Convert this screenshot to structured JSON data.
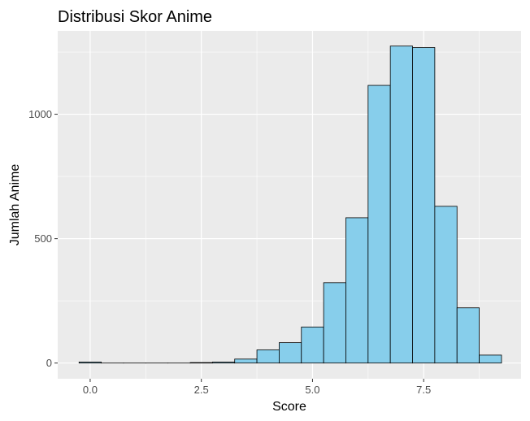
{
  "chart_data": {
    "type": "bar",
    "title": "Distribusi Skor Anime",
    "xlabel": "Score",
    "ylabel": "Jumlah Anime",
    "x_ticks": [
      0.0,
      2.5,
      5.0,
      7.5
    ],
    "x_tick_labels": [
      "0.0",
      "2.5",
      "5.0",
      "7.5"
    ],
    "y_ticks": [
      0,
      500,
      1000
    ],
    "y_tick_labels": [
      "0",
      "500",
      "1000"
    ],
    "xlim": [
      -0.73,
      9.69
    ],
    "ylim": [
      -63,
      1335
    ],
    "bin_width": 0.5,
    "bins": [
      {
        "x_start": -0.25,
        "x_end": 0.25,
        "count": 4
      },
      {
        "x_start": 0.25,
        "x_end": 0.75,
        "count": 0
      },
      {
        "x_start": 0.75,
        "x_end": 1.25,
        "count": 0
      },
      {
        "x_start": 1.25,
        "x_end": 1.75,
        "count": 0
      },
      {
        "x_start": 1.75,
        "x_end": 2.25,
        "count": 0
      },
      {
        "x_start": 2.25,
        "x_end": 2.75,
        "count": 2
      },
      {
        "x_start": 2.75,
        "x_end": 3.25,
        "count": 4
      },
      {
        "x_start": 3.25,
        "x_end": 3.75,
        "count": 16
      },
      {
        "x_start": 3.75,
        "x_end": 4.25,
        "count": 53
      },
      {
        "x_start": 4.25,
        "x_end": 4.75,
        "count": 82
      },
      {
        "x_start": 4.75,
        "x_end": 5.25,
        "count": 145
      },
      {
        "x_start": 5.25,
        "x_end": 5.75,
        "count": 323
      },
      {
        "x_start": 5.75,
        "x_end": 6.25,
        "count": 584
      },
      {
        "x_start": 6.25,
        "x_end": 6.75,
        "count": 1116
      },
      {
        "x_start": 6.75,
        "x_end": 7.25,
        "count": 1274
      },
      {
        "x_start": 7.25,
        "x_end": 7.75,
        "count": 1268
      },
      {
        "x_start": 7.75,
        "x_end": 8.25,
        "count": 630
      },
      {
        "x_start": 8.25,
        "x_end": 8.75,
        "count": 222
      },
      {
        "x_start": 8.75,
        "x_end": 9.25,
        "count": 32
      }
    ],
    "bar_fill": "#87ceeb",
    "bar_stroke": "#000000",
    "panel_background": "#ebebeb",
    "grid_color": "#ffffff",
    "grid": true,
    "legend": "none"
  }
}
